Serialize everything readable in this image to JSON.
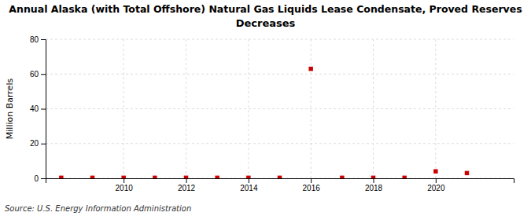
{
  "chart_data": {
    "type": "scatter",
    "title": "Annual Alaska (with Total Offshore) Natural Gas Liquids Lease Condensate, Proved Reserves",
    "subtitle": "Decreases",
    "ylabel": "Million Barrels",
    "annotations": [
      "Source: U.S. Energy Information Administration"
    ],
    "x": [
      2008,
      2009,
      2010,
      2011,
      2012,
      2013,
      2014,
      2015,
      2016,
      2017,
      2018,
      2019,
      2020,
      2021
    ],
    "values": [
      0.3,
      0.3,
      0.3,
      0.3,
      0.3,
      0.3,
      0.3,
      0.3,
      63.0,
      0.3,
      0.3,
      0.3,
      4.0,
      3.0
    ],
    "color": "#cc0000",
    "marker": "square",
    "xlim": [
      2007.5,
      2022.5
    ],
    "xticks": [
      2010,
      2012,
      2014,
      2016,
      2018,
      2020
    ],
    "ylim": [
      0,
      80
    ],
    "yticks": [
      0,
      20,
      40,
      60,
      80
    ],
    "grid": true
  }
}
